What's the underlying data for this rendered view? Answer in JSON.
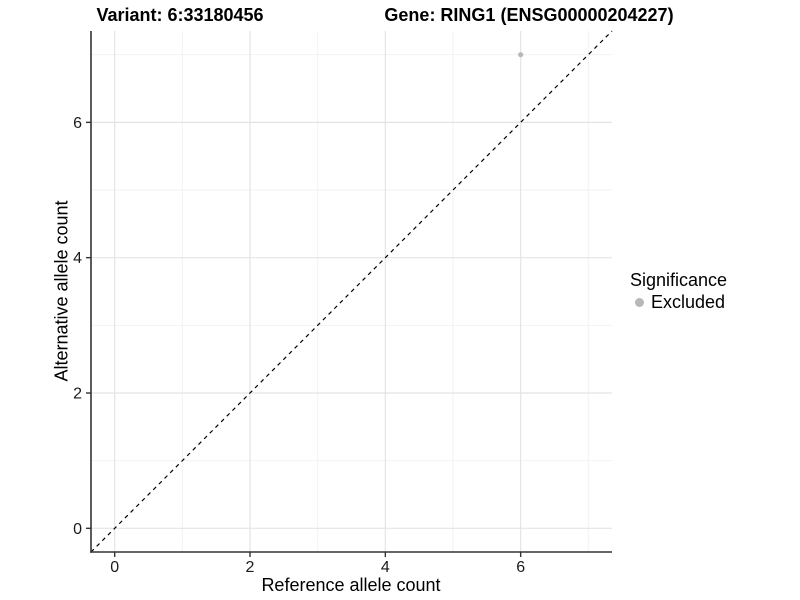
{
  "chart_data": {
    "type": "scatter",
    "titles": {
      "variant": "Variant: 6:33180456",
      "gene": "Gene: RING1 (ENSG00000204227)"
    },
    "xlabel": "Reference allele count",
    "ylabel": "Alternative allele count",
    "xlim": [
      -0.35,
      7.35
    ],
    "ylim": [
      -0.35,
      7.35
    ],
    "xticks": [
      0,
      2,
      4,
      6
    ],
    "yticks": [
      0,
      2,
      4,
      6
    ],
    "xticks_minor": [
      1,
      3,
      5,
      7
    ],
    "yticks_minor": [
      1,
      3,
      5,
      7
    ],
    "grid": true,
    "points": [
      {
        "x": 6,
        "y": 7,
        "series": "Excluded"
      }
    ],
    "reference_line": {
      "slope": 1,
      "intercept": 0,
      "style": "dashed"
    },
    "legend": {
      "title": "Significance",
      "position": "right",
      "entries": [
        {
          "label": "Excluded",
          "color": "#b8b8b8"
        }
      ]
    },
    "colors": {
      "point": "#b8b8b8",
      "grid_major": "#e4e4e4",
      "grid_minor": "#f2f2f2",
      "axis": "#333333",
      "reference_line": "#000000",
      "text": "#000000"
    }
  }
}
